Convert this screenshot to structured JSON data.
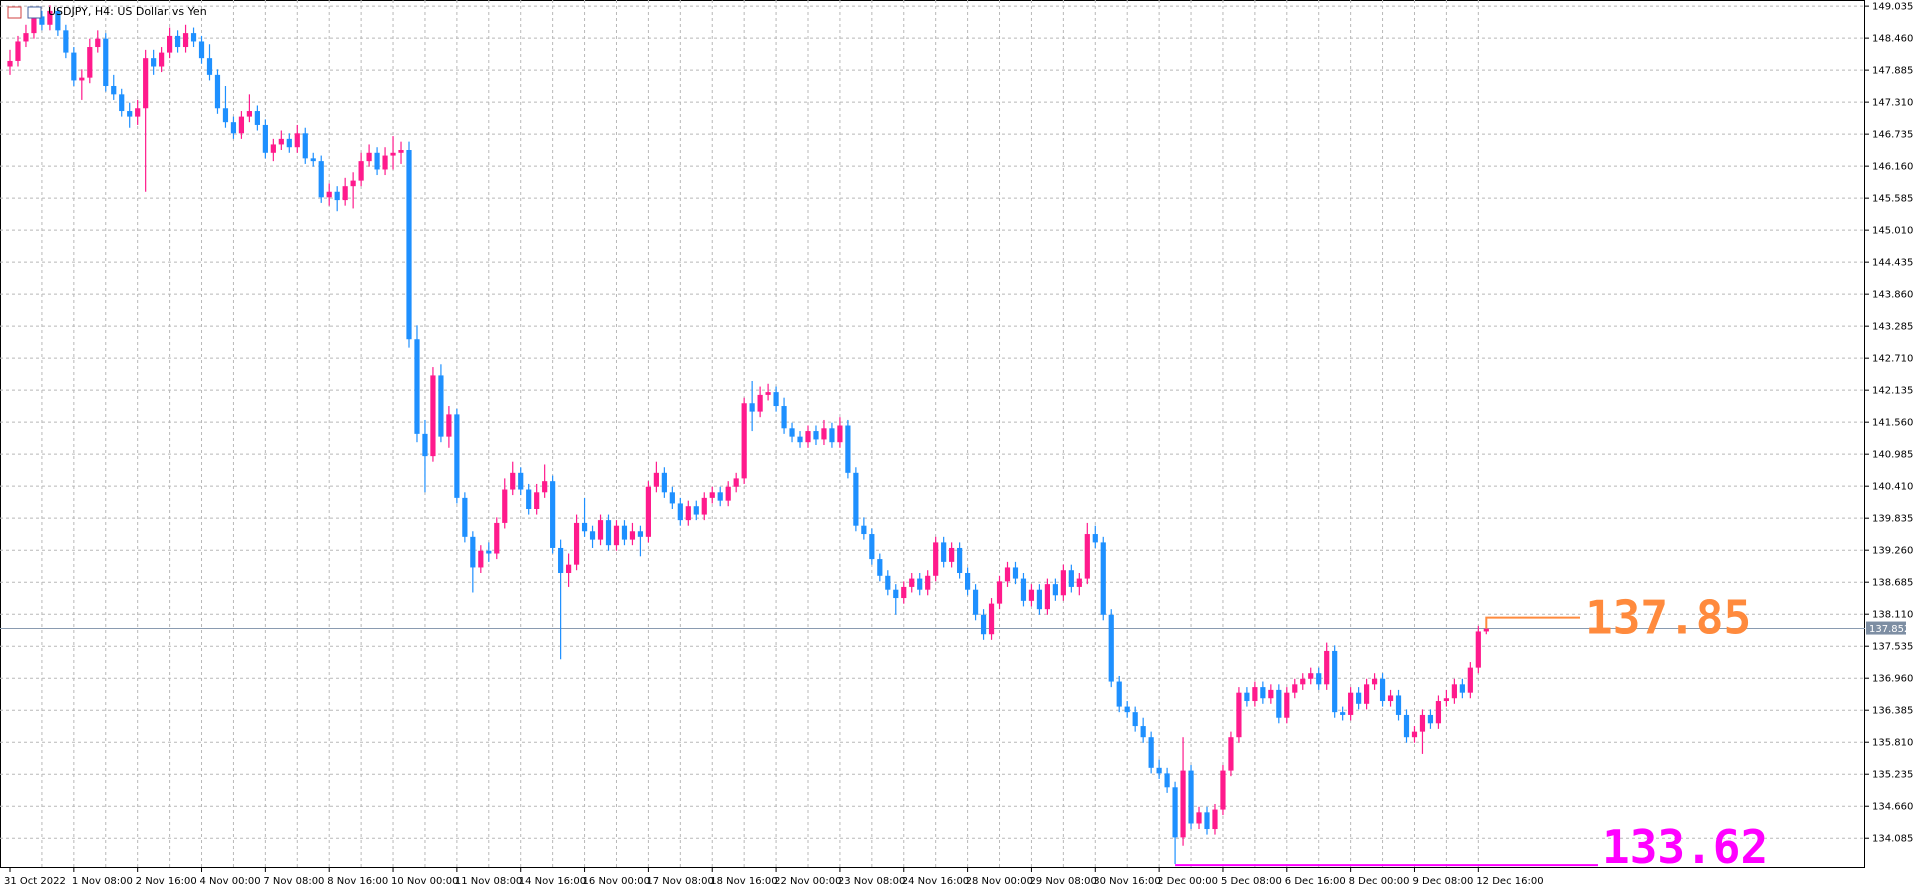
{
  "chart_data": {
    "type": "candlestick",
    "title": "USDJPY, H4:  US Dollar vs Yen",
    "up_color": "#ff1a8c",
    "down_color": "#1e90ff",
    "grid": true,
    "ylim": [
      133.55,
      149.145
    ],
    "yticks": [
      149.035,
      148.46,
      147.885,
      147.31,
      146.735,
      146.16,
      145.585,
      145.01,
      144.435,
      143.86,
      143.285,
      142.71,
      142.135,
      141.56,
      140.985,
      140.41,
      139.835,
      139.26,
      138.685,
      138.11,
      137.535,
      136.96,
      136.385,
      135.81,
      135.235,
      134.66,
      134.085
    ],
    "ytick_labels": [
      "149.035",
      "148.460",
      "147.885",
      "147.310",
      "146.735",
      "146.160",
      "145.585",
      "145.010",
      "144.435",
      "143.860",
      "143.285",
      "142.710",
      "142.135",
      "141.560",
      "140.985",
      "140.410",
      "139.835",
      "139.260",
      "138.685",
      "138.110",
      "137.535",
      "136.960",
      "136.385",
      "135.810",
      "135.235",
      "134.660",
      "134.085"
    ],
    "current_price": 137.852,
    "annotations": [
      {
        "value": 137.85,
        "color": "#ff8a3d",
        "candle": 185
      },
      {
        "value": 133.62,
        "color": "#ff00ff",
        "candle": 146
      }
    ],
    "categories": [
      "31 Oct 2022",
      null,
      null,
      null,
      null,
      null,
      null,
      null,
      "1 Nov 08:00",
      null,
      null,
      null,
      null,
      null,
      null,
      null,
      "2 Nov 16:00",
      null,
      null,
      null,
      null,
      null,
      null,
      null,
      "4 Nov 00:00",
      null,
      null,
      null,
      null,
      null,
      null,
      null,
      "7 Nov 08:00",
      null,
      null,
      null,
      null,
      null,
      null,
      null,
      "8 Nov 16:00",
      null,
      null,
      null,
      null,
      null,
      null,
      null,
      "10 Nov 00:00",
      null,
      null,
      null,
      null,
      null,
      null,
      null,
      "11 Nov 08:00",
      null,
      null,
      null,
      null,
      null,
      null,
      null,
      "14 Nov 16:00",
      null,
      null,
      null,
      null,
      null,
      null,
      null,
      "16 Nov 00:00",
      null,
      null,
      null,
      null,
      null,
      null,
      null,
      "17 Nov 08:00",
      null,
      null,
      null,
      null,
      null,
      null,
      null,
      "18 Nov 16:00",
      null,
      null,
      null,
      null,
      null,
      null,
      null,
      "22 Nov 00:00",
      null,
      null,
      null,
      null,
      null,
      null,
      null,
      "23 Nov 08:00",
      null,
      null,
      null,
      null,
      null,
      null,
      null,
      "24 Nov 16:00",
      null,
      null,
      null,
      null,
      null,
      null,
      null,
      "28 Nov 00:00",
      null,
      null,
      null,
      null,
      null,
      null,
      null,
      "29 Nov 08:00",
      null,
      null,
      null,
      null,
      null,
      null,
      null,
      "30 Nov 16:00",
      null,
      null,
      null,
      null,
      null,
      null,
      null,
      "2 Dec 00:00",
      null,
      null,
      null,
      null,
      null,
      null,
      null,
      "5 Dec 08:00",
      null,
      null,
      null,
      null,
      null,
      null,
      null,
      "6 Dec 16:00",
      null,
      null,
      null,
      null,
      null,
      null,
      null,
      "8 Dec 00:00",
      null,
      null,
      null,
      null,
      null,
      null,
      null,
      "9 Dec 08:00",
      null,
      null,
      null,
      null,
      null,
      null,
      null,
      "12 Dec 16:00",
      null
    ],
    "ohlc": [
      [
        147.95,
        148.25,
        147.8,
        148.05
      ],
      [
        148.05,
        148.5,
        147.95,
        148.4
      ],
      [
        148.4,
        148.7,
        148.3,
        148.55
      ],
      [
        148.55,
        149.0,
        148.45,
        148.85
      ],
      [
        148.85,
        148.95,
        148.6,
        148.7
      ],
      [
        148.7,
        149.05,
        148.6,
        148.95
      ],
      [
        148.95,
        149.0,
        148.5,
        148.6
      ],
      [
        148.6,
        148.7,
        148.1,
        148.2
      ],
      [
        148.2,
        148.3,
        147.6,
        147.7
      ],
      [
        147.7,
        147.9,
        147.35,
        147.75
      ],
      [
        147.75,
        148.45,
        147.65,
        148.3
      ],
      [
        148.3,
        148.6,
        148.2,
        148.45
      ],
      [
        148.45,
        148.55,
        147.5,
        147.6
      ],
      [
        147.6,
        147.8,
        147.35,
        147.45
      ],
      [
        147.45,
        147.55,
        147.05,
        147.15
      ],
      [
        147.15,
        147.3,
        146.85,
        147.05
      ],
      [
        147.05,
        147.35,
        146.9,
        147.2
      ],
      [
        147.2,
        148.25,
        145.7,
        148.1
      ],
      [
        148.1,
        148.25,
        147.8,
        147.95
      ],
      [
        147.95,
        148.3,
        147.85,
        148.2
      ],
      [
        148.2,
        148.65,
        148.1,
        148.5
      ],
      [
        148.5,
        148.6,
        148.2,
        148.3
      ],
      [
        148.3,
        148.7,
        148.2,
        148.55
      ],
      [
        148.55,
        148.65,
        148.3,
        148.4
      ],
      [
        148.4,
        148.5,
        148.0,
        148.1
      ],
      [
        148.1,
        148.35,
        147.7,
        147.8
      ],
      [
        147.8,
        147.9,
        147.1,
        147.2
      ],
      [
        147.2,
        147.6,
        146.85,
        146.95
      ],
      [
        146.95,
        147.05,
        146.65,
        146.75
      ],
      [
        146.75,
        147.15,
        146.65,
        147.05
      ],
      [
        147.05,
        147.45,
        146.95,
        147.15
      ],
      [
        147.15,
        147.25,
        146.8,
        146.9
      ],
      [
        146.9,
        147.0,
        146.3,
        146.4
      ],
      [
        146.4,
        146.65,
        146.25,
        146.55
      ],
      [
        146.55,
        146.8,
        146.45,
        146.65
      ],
      [
        146.65,
        146.75,
        146.4,
        146.5
      ],
      [
        146.5,
        146.9,
        146.4,
        146.75
      ],
      [
        146.75,
        146.85,
        146.2,
        146.3
      ],
      [
        146.3,
        146.4,
        146.15,
        146.25
      ],
      [
        146.25,
        146.35,
        145.5,
        145.6
      ],
      [
        145.6,
        145.85,
        145.45,
        145.7
      ],
      [
        145.7,
        145.8,
        145.35,
        145.55
      ],
      [
        145.55,
        145.95,
        145.45,
        145.8
      ],
      [
        145.8,
        146.05,
        145.4,
        145.9
      ],
      [
        145.9,
        146.4,
        145.8,
        146.25
      ],
      [
        146.25,
        146.55,
        146.15,
        146.4
      ],
      [
        146.4,
        146.5,
        146.0,
        146.1
      ],
      [
        146.1,
        146.5,
        146.0,
        146.35
      ],
      [
        146.35,
        146.7,
        146.1,
        146.4
      ],
      [
        146.4,
        146.6,
        146.2,
        146.45
      ],
      [
        146.45,
        146.6,
        142.9,
        143.05
      ],
      [
        143.05,
        143.3,
        141.2,
        141.35
      ],
      [
        141.35,
        141.6,
        140.3,
        140.95
      ],
      [
        140.95,
        142.55,
        140.85,
        142.4
      ],
      [
        142.4,
        142.6,
        141.2,
        141.3
      ],
      [
        141.3,
        141.85,
        141.1,
        141.7
      ],
      [
        141.7,
        141.8,
        140.1,
        140.2
      ],
      [
        140.2,
        140.3,
        139.4,
        139.5
      ],
      [
        139.5,
        139.6,
        138.5,
        138.95
      ],
      [
        138.95,
        139.35,
        138.85,
        139.25
      ],
      [
        139.25,
        139.4,
        139.05,
        139.2
      ],
      [
        139.2,
        139.85,
        139.1,
        139.75
      ],
      [
        139.75,
        140.55,
        139.65,
        140.35
      ],
      [
        140.35,
        140.85,
        140.25,
        140.65
      ],
      [
        140.65,
        140.75,
        140.25,
        140.35
      ],
      [
        140.35,
        140.45,
        139.9,
        140.0
      ],
      [
        140.0,
        140.45,
        139.9,
        140.3
      ],
      [
        140.3,
        140.8,
        140.2,
        140.5
      ],
      [
        140.5,
        140.6,
        139.2,
        139.3
      ],
      [
        139.3,
        139.45,
        137.3,
        138.85
      ],
      [
        138.85,
        139.2,
        138.6,
        139.0
      ],
      [
        139.0,
        139.9,
        138.9,
        139.75
      ],
      [
        139.75,
        140.2,
        139.5,
        139.6
      ],
      [
        139.6,
        139.7,
        139.3,
        139.45
      ],
      [
        139.45,
        139.9,
        139.35,
        139.8
      ],
      [
        139.8,
        139.9,
        139.25,
        139.35
      ],
      [
        139.35,
        139.8,
        139.25,
        139.7
      ],
      [
        139.7,
        139.8,
        139.35,
        139.45
      ],
      [
        139.45,
        139.75,
        139.35,
        139.6
      ],
      [
        139.6,
        139.7,
        139.15,
        139.5
      ],
      [
        139.5,
        140.5,
        139.4,
        140.4
      ],
      [
        140.4,
        140.85,
        140.3,
        140.65
      ],
      [
        140.65,
        140.75,
        140.2,
        140.3
      ],
      [
        140.3,
        140.4,
        140.0,
        140.1
      ],
      [
        140.1,
        140.2,
        139.7,
        139.8
      ],
      [
        139.8,
        140.15,
        139.7,
        140.05
      ],
      [
        140.05,
        140.15,
        139.8,
        139.9
      ],
      [
        139.9,
        140.3,
        139.8,
        140.2
      ],
      [
        140.2,
        140.4,
        140.1,
        140.3
      ],
      [
        140.3,
        140.4,
        140.05,
        140.15
      ],
      [
        140.15,
        140.5,
        140.05,
        140.4
      ],
      [
        140.4,
        140.65,
        140.3,
        140.55
      ],
      [
        140.55,
        142.0,
        140.45,
        141.9
      ],
      [
        141.9,
        142.3,
        141.4,
        141.75
      ],
      [
        141.75,
        142.2,
        141.65,
        142.05
      ],
      [
        142.05,
        142.25,
        141.95,
        142.1
      ],
      [
        142.1,
        142.2,
        141.75,
        141.85
      ],
      [
        141.85,
        142.0,
        141.35,
        141.45
      ],
      [
        141.45,
        141.55,
        141.2,
        141.3
      ],
      [
        141.3,
        141.4,
        141.1,
        141.2
      ],
      [
        141.2,
        141.5,
        141.1,
        141.4
      ],
      [
        141.4,
        141.5,
        141.15,
        141.25
      ],
      [
        141.25,
        141.6,
        141.15,
        141.45
      ],
      [
        141.45,
        141.55,
        141.1,
        141.2
      ],
      [
        141.2,
        141.65,
        141.1,
        141.5
      ],
      [
        141.5,
        141.6,
        140.55,
        140.65
      ],
      [
        140.65,
        140.75,
        139.6,
        139.7
      ],
      [
        139.7,
        139.85,
        139.45,
        139.55
      ],
      [
        139.55,
        139.65,
        139.0,
        139.1
      ],
      [
        139.1,
        139.2,
        138.7,
        138.8
      ],
      [
        138.8,
        138.9,
        138.45,
        138.55
      ],
      [
        138.55,
        138.65,
        138.1,
        138.4
      ],
      [
        138.4,
        138.7,
        138.3,
        138.6
      ],
      [
        138.6,
        138.85,
        138.5,
        138.75
      ],
      [
        138.75,
        138.85,
        138.45,
        138.55
      ],
      [
        138.55,
        138.9,
        138.45,
        138.8
      ],
      [
        138.8,
        139.5,
        138.7,
        139.4
      ],
      [
        139.4,
        139.5,
        138.95,
        139.05
      ],
      [
        139.05,
        139.4,
        138.95,
        139.3
      ],
      [
        139.3,
        139.4,
        138.75,
        138.85
      ],
      [
        138.85,
        138.95,
        138.45,
        138.55
      ],
      [
        138.55,
        138.65,
        138.0,
        138.1
      ],
      [
        138.1,
        138.2,
        137.65,
        137.75
      ],
      [
        137.75,
        138.4,
        137.65,
        138.3
      ],
      [
        138.3,
        138.8,
        138.2,
        138.7
      ],
      [
        138.7,
        139.05,
        138.6,
        138.95
      ],
      [
        138.95,
        139.05,
        138.65,
        138.75
      ],
      [
        138.75,
        138.85,
        138.25,
        138.35
      ],
      [
        138.35,
        138.65,
        138.25,
        138.55
      ],
      [
        138.55,
        138.65,
        138.1,
        138.2
      ],
      [
        138.2,
        138.75,
        138.1,
        138.65
      ],
      [
        138.65,
        138.75,
        138.35,
        138.45
      ],
      [
        138.45,
        139.0,
        138.35,
        138.9
      ],
      [
        138.9,
        139.0,
        138.5,
        138.6
      ],
      [
        138.6,
        138.85,
        138.45,
        138.75
      ],
      [
        138.75,
        139.75,
        138.65,
        139.55
      ],
      [
        139.55,
        139.7,
        139.3,
        139.4
      ],
      [
        139.4,
        139.5,
        138.0,
        138.1
      ],
      [
        138.1,
        138.2,
        136.8,
        136.9
      ],
      [
        136.9,
        137.0,
        136.35,
        136.45
      ],
      [
        136.45,
        136.55,
        136.25,
        136.35
      ],
      [
        136.35,
        136.45,
        136.0,
        136.1
      ],
      [
        136.1,
        136.25,
        135.8,
        135.9
      ],
      [
        135.9,
        136.0,
        135.25,
        135.35
      ],
      [
        135.35,
        135.5,
        135.15,
        135.25
      ],
      [
        135.25,
        135.35,
        134.9,
        135.0
      ],
      [
        135.0,
        135.1,
        133.62,
        134.1
      ],
      [
        134.1,
        135.9,
        133.95,
        135.3
      ],
      [
        135.3,
        135.4,
        134.25,
        134.35
      ],
      [
        134.35,
        134.65,
        134.25,
        134.55
      ],
      [
        134.55,
        134.65,
        134.15,
        134.25
      ],
      [
        134.25,
        134.7,
        134.15,
        134.6
      ],
      [
        134.6,
        135.4,
        134.5,
        135.3
      ],
      [
        135.3,
        136.0,
        135.2,
        135.9
      ],
      [
        135.9,
        136.8,
        135.8,
        136.7
      ],
      [
        136.7,
        136.8,
        136.45,
        136.55
      ],
      [
        136.55,
        136.9,
        136.45,
        136.8
      ],
      [
        136.8,
        136.9,
        136.5,
        136.6
      ],
      [
        136.6,
        136.85,
        136.5,
        136.75
      ],
      [
        136.75,
        136.85,
        136.15,
        136.25
      ],
      [
        136.25,
        136.8,
        136.15,
        136.7
      ],
      [
        136.7,
        136.95,
        136.6,
        136.85
      ],
      [
        136.85,
        137.05,
        136.75,
        136.95
      ],
      [
        136.95,
        137.15,
        136.85,
        137.05
      ],
      [
        137.05,
        137.15,
        136.75,
        136.85
      ],
      [
        136.85,
        137.6,
        136.75,
        137.45
      ],
      [
        137.45,
        137.55,
        136.25,
        136.35
      ],
      [
        136.35,
        136.45,
        136.2,
        136.3
      ],
      [
        136.3,
        136.8,
        136.2,
        136.7
      ],
      [
        136.7,
        136.8,
        136.4,
        136.5
      ],
      [
        136.5,
        136.95,
        136.4,
        136.85
      ],
      [
        136.85,
        137.05,
        136.75,
        136.95
      ],
      [
        136.95,
        137.05,
        136.45,
        136.55
      ],
      [
        136.55,
        136.75,
        136.45,
        136.65
      ],
      [
        136.65,
        136.75,
        136.2,
        136.3
      ],
      [
        136.3,
        136.4,
        135.8,
        135.9
      ],
      [
        135.9,
        136.1,
        135.8,
        136.0
      ],
      [
        136.0,
        136.4,
        135.6,
        136.3
      ],
      [
        136.3,
        136.4,
        136.05,
        136.15
      ],
      [
        136.15,
        136.65,
        136.05,
        136.55
      ],
      [
        136.55,
        136.75,
        136.45,
        136.6
      ],
      [
        136.6,
        136.95,
        136.5,
        136.85
      ],
      [
        136.85,
        136.95,
        136.6,
        136.7
      ],
      [
        136.7,
        137.25,
        136.6,
        137.15
      ],
      [
        137.15,
        137.9,
        137.05,
        137.8
      ],
      [
        137.8,
        137.95,
        137.75,
        137.85
      ]
    ]
  }
}
